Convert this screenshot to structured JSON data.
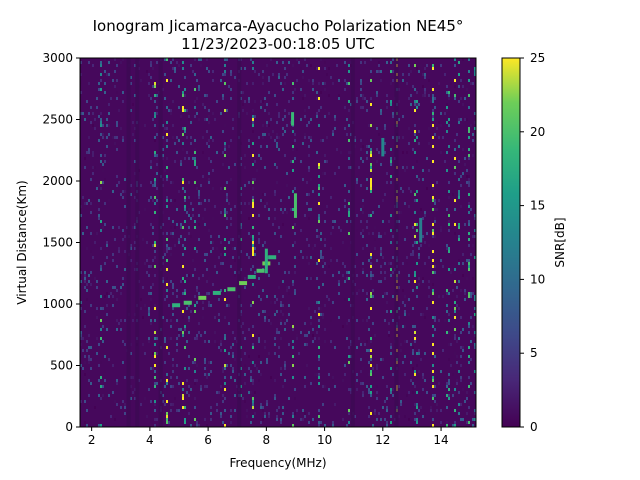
{
  "chart_data": {
    "type": "heatmap",
    "title": "Ionogram Jicamarca-Ayacucho Polarization NE45°",
    "subtitle": "11/23/2023-00:18:05 UTC",
    "xlabel": "Frequency(MHz)",
    "ylabel": "Virtual Distance(Km)",
    "xlim": [
      1.6,
      15.2
    ],
    "ylim": [
      0,
      3000
    ],
    "xticks": [
      2,
      4,
      6,
      8,
      10,
      12,
      14
    ],
    "yticks": [
      0,
      500,
      1000,
      1500,
      2000,
      2500,
      3000
    ],
    "colorbar": {
      "label": "SNR[dB]",
      "range": [
        0,
        25
      ],
      "ticks": [
        0,
        5,
        10,
        15,
        20,
        25
      ],
      "colormap": "viridis"
    },
    "grid": false,
    "background_value": 1,
    "trace": {
      "name": "",
      "x": [
        4.9,
        5.3,
        5.8,
        6.3,
        6.8,
        7.2,
        7.5,
        7.8,
        8.0,
        8.2
      ],
      "y": [
        990,
        1010,
        1050,
        1090,
        1120,
        1170,
        1220,
        1270,
        1330,
        1380
      ]
    },
    "bright_streaks": [
      {
        "x": 9.0,
        "y": [
          1700,
          1900
        ],
        "value": 20
      },
      {
        "x": 8.0,
        "y": [
          1250,
          1450
        ],
        "value": 18
      },
      {
        "x": 8.9,
        "y": [
          2450,
          2560
        ],
        "value": 19
      },
      {
        "x": 12.0,
        "y": [
          2200,
          2350
        ],
        "value": 13
      },
      {
        "x": 13.3,
        "y": [
          1500,
          1700
        ],
        "value": 12
      }
    ]
  }
}
